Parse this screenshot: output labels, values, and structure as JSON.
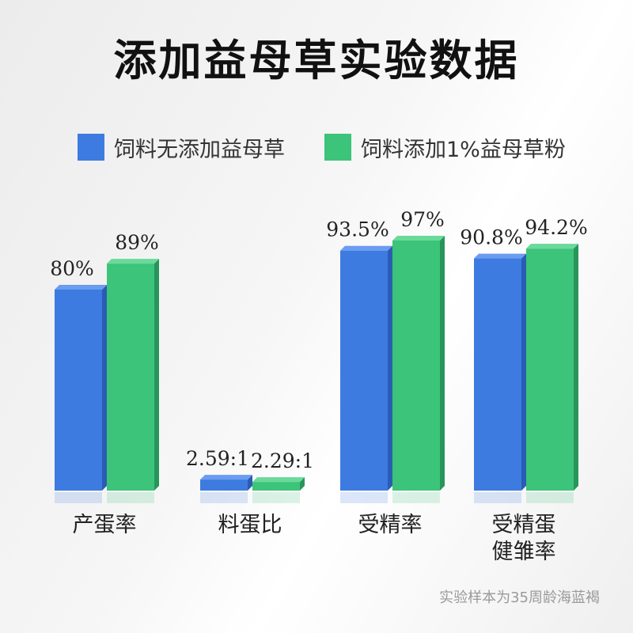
{
  "title": "添加益母草实验数据",
  "legend": {
    "a": "饲料无添加益母草",
    "b": "饲料添加1%益母草粉"
  },
  "colors": {
    "a": "#3d7be0",
    "b": "#3cc47a"
  },
  "footnote": "实验样本为35周龄海蓝褐",
  "chart_data": {
    "type": "bar",
    "title": "添加益母草实验数据",
    "categories": [
      "产蛋率",
      "料蛋比",
      "受精率",
      "受精蛋健雏率"
    ],
    "category_lines": [
      [
        "产蛋率"
      ],
      [
        "料蛋比"
      ],
      [
        "受精率"
      ],
      [
        "受精蛋",
        "健雏率"
      ]
    ],
    "series": [
      {
        "name": "饲料无添加益母草",
        "values": [
          80,
          2.59,
          93.5,
          90.8
        ],
        "labels": [
          "80%",
          "2.59:1",
          "93.5%",
          "90.8%"
        ]
      },
      {
        "name": "饲料添加1%益母草粉",
        "values": [
          89,
          2.29,
          97,
          94.2
        ],
        "labels": [
          "89%",
          "2.29:1",
          "97%",
          "94.2%"
        ]
      }
    ],
    "legend_position": "top",
    "grid": false
  }
}
